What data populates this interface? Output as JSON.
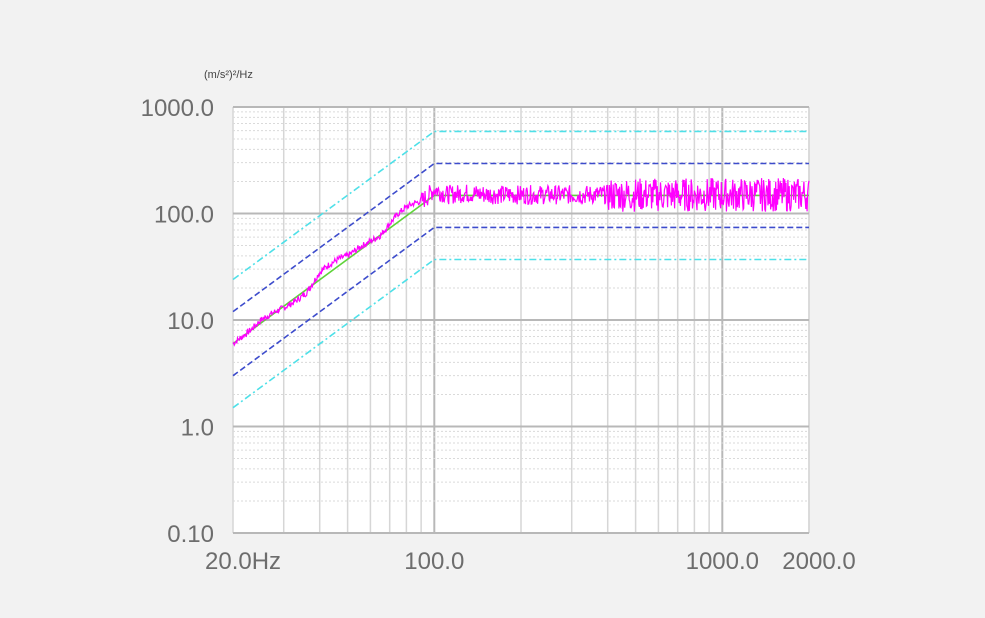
{
  "chart_data": {
    "type": "line",
    "title": "",
    "unit_label": "(m/s²)²/Hz",
    "xscale": "log",
    "yscale": "log",
    "xlim": [
      20,
      2000
    ],
    "ylim": [
      0.1,
      1000
    ],
    "grid": true,
    "x_tick_labels": [
      {
        "value": 20,
        "label": "20.0Hz"
      },
      {
        "value": 100,
        "label": "100.0"
      },
      {
        "value": 1000,
        "label": "1000.0"
      },
      {
        "value": 2000,
        "label": "2000.0"
      }
    ],
    "y_tick_labels": [
      {
        "value": 1000,
        "label": "1000.0"
      },
      {
        "value": 100,
        "label": "100.0"
      },
      {
        "value": 10,
        "label": "10.0"
      },
      {
        "value": 1,
        "label": "1.0"
      },
      {
        "value": 0.1,
        "label": "0.10"
      }
    ],
    "series": [
      {
        "color": "#4ee0e8",
        "style": "dash-dot",
        "x": [
          20,
          100,
          2000
        ],
        "y": [
          24,
          590,
          590
        ]
      },
      {
        "color": "#3d4ccc",
        "style": "dash",
        "x": [
          20,
          100,
          2000
        ],
        "y": [
          12,
          295,
          295
        ]
      },
      {
        "color": "#5fd33a",
        "style": "solid",
        "x": [
          20,
          100,
          2000
        ],
        "y": [
          6,
          148,
          148
        ]
      },
      {
        "color": "#3d4ccc",
        "style": "dash",
        "x": [
          20,
          100,
          2000
        ],
        "y": [
          3,
          74,
          74
        ]
      },
      {
        "color": "#4ee0e8",
        "style": "dash-dot",
        "x": [
          20,
          100,
          2000
        ],
        "y": [
          1.5,
          37,
          37
        ]
      },
      {
        "color": "#ff00ff",
        "style": "noisy",
        "x": [
          20,
          23,
          25,
          28,
          30,
          33,
          36,
          40,
          43,
          47,
          50,
          55,
          60,
          65,
          70,
          75,
          80,
          85,
          90,
          95,
          100,
          110,
          130,
          160,
          200,
          300,
          500,
          1000,
          2000
        ],
        "y": [
          6,
          8,
          10,
          12,
          13,
          15,
          18,
          28,
          33,
          38,
          40,
          48,
          55,
          62,
          80,
          100,
          115,
          125,
          130,
          145,
          170,
          150,
          155,
          150,
          150,
          150,
          150,
          150,
          150
        ]
      }
    ]
  }
}
